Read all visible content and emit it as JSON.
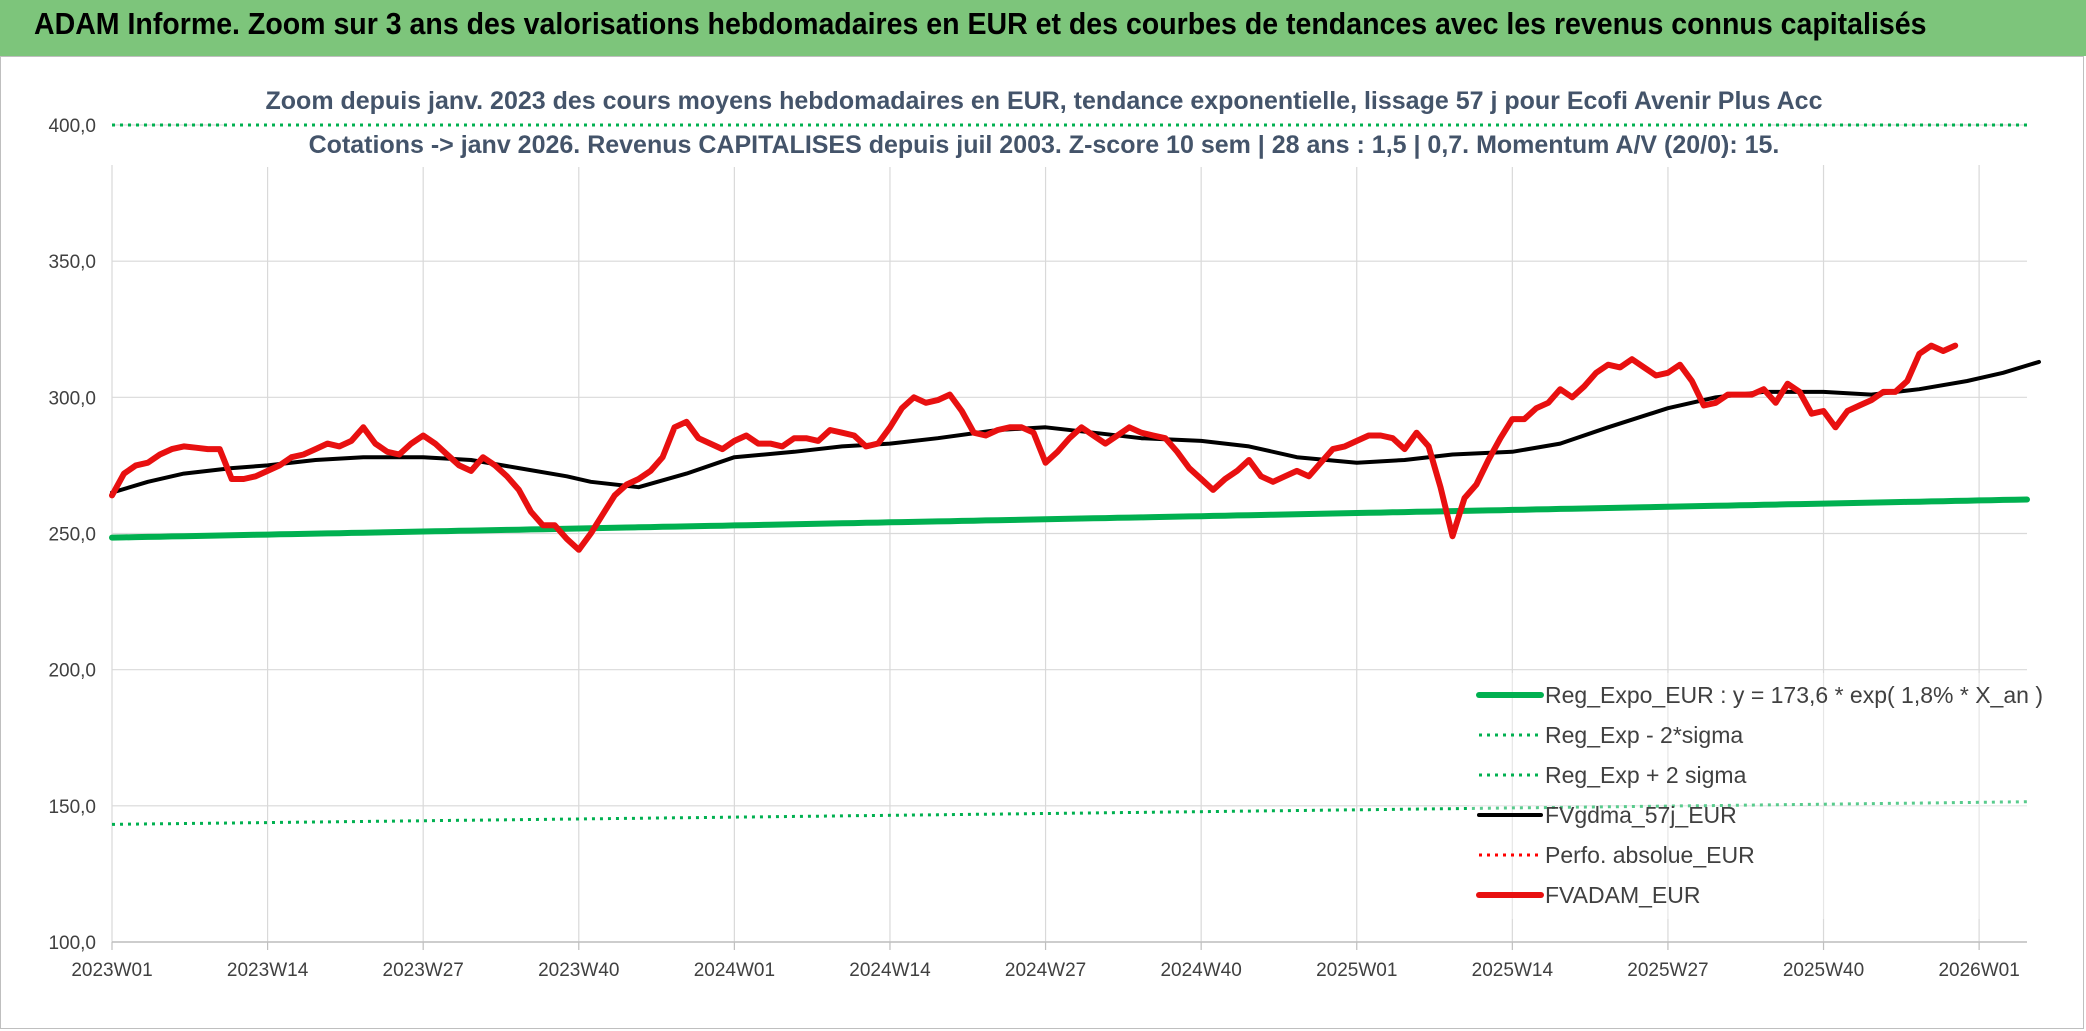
{
  "header": {
    "title": "ADAM Informe. Zoom sur 3 ans des valorisations hebdomadaires en EUR et des courbes de tendances avec les revenus connus capitalisés"
  },
  "chart_data": {
    "type": "line",
    "title_line1": "Zoom depuis janv. 2023 des cours moyens hebdomadaires en EUR, tendance exponentielle, lissage 57 j pour Ecofi Avenir Plus Acc",
    "title_line2": "Cotations -> janv 2026. Revenus CAPITALISES depuis juil 2003. Z-score 10 sem | 28 ans : 1,5 | 0,7. Momentum A/V (20/0): 15.",
    "ylim": [
      100,
      400
    ],
    "yticks": [
      "100,0",
      "150,0",
      "200,0",
      "250,0",
      "300,0",
      "350,0",
      "400,0"
    ],
    "ytick_values": [
      100,
      150,
      200,
      250,
      300,
      350,
      400
    ],
    "xticks": [
      "2023W01",
      "2023W14",
      "2023W27",
      "2023W40",
      "2024W01",
      "2024W14",
      "2024W27",
      "2024W40",
      "2025W01",
      "2025W14",
      "2025W27",
      "2025W40",
      "2026W01"
    ],
    "xtick_index": [
      0,
      13,
      26,
      39,
      52,
      65,
      78,
      91,
      104,
      117,
      130,
      143,
      156
    ],
    "n_weeks": 161,
    "grid": true,
    "legend_position": "bottom-right",
    "colors": {
      "green": "#00b050",
      "black": "#000000",
      "red": "#e81010",
      "red_dotted": "#ff0000"
    },
    "series": [
      {
        "name": "Reg_Expo_EUR : y = 173,6 * exp( 1,8% *  X_an )",
        "style": "solid-thick",
        "color": "#00b050",
        "start": 248.5,
        "end": 262.5
      },
      {
        "name": "Reg_Exp - 2*sigma",
        "style": "dotted",
        "color": "#00b050",
        "start": 143.2,
        "end": 151.5
      },
      {
        "name": "Reg_Exp + 2 sigma",
        "style": "dotted",
        "color": "#00b050",
        "start": 400,
        "end": 400
      },
      {
        "name": "FVgdma_57j_EUR",
        "style": "solid",
        "color": "#000000",
        "points": [
          [
            0,
            265
          ],
          [
            3,
            269
          ],
          [
            6,
            272
          ],
          [
            10,
            274
          ],
          [
            13,
            275
          ],
          [
            17,
            277
          ],
          [
            21,
            278
          ],
          [
            26,
            278
          ],
          [
            30,
            277
          ],
          [
            34,
            274
          ],
          [
            38,
            271
          ],
          [
            40,
            269
          ],
          [
            44,
            267
          ],
          [
            48,
            272
          ],
          [
            52,
            278
          ],
          [
            57,
            280
          ],
          [
            61,
            282
          ],
          [
            65,
            283
          ],
          [
            69,
            285
          ],
          [
            74,
            288
          ],
          [
            78,
            289
          ],
          [
            82,
            287
          ],
          [
            86,
            285
          ],
          [
            91,
            284
          ],
          [
            95,
            282
          ],
          [
            99,
            278
          ],
          [
            104,
            276
          ],
          [
            108,
            277
          ],
          [
            112,
            279
          ],
          [
            117,
            280
          ],
          [
            121,
            283
          ],
          [
            125,
            289
          ],
          [
            130,
            296
          ],
          [
            134,
            300
          ],
          [
            138,
            302
          ],
          [
            143,
            302
          ],
          [
            147,
            301
          ],
          [
            151,
            303
          ],
          [
            155,
            306
          ],
          [
            158,
            309
          ],
          [
            161,
            313
          ]
        ]
      },
      {
        "name": "Perfo. absolue_EUR",
        "style": "dotted",
        "color": "#ff0000",
        "points": []
      },
      {
        "name": "FVADAM_EUR",
        "style": "solid-thick",
        "color": "#e81010",
        "points": [
          [
            0,
            264
          ],
          [
            1,
            272
          ],
          [
            2,
            275
          ],
          [
            3,
            276
          ],
          [
            4,
            279
          ],
          [
            5,
            281
          ],
          [
            6,
            282
          ],
          [
            7,
            281.5
          ],
          [
            8,
            281
          ],
          [
            9,
            281
          ],
          [
            10,
            270
          ],
          [
            11,
            270
          ],
          [
            12,
            271
          ],
          [
            13,
            273
          ],
          [
            14,
            275
          ],
          [
            15,
            278
          ],
          [
            16,
            279
          ],
          [
            17,
            281
          ],
          [
            18,
            283
          ],
          [
            19,
            282
          ],
          [
            20,
            284
          ],
          [
            21,
            289
          ],
          [
            22,
            283
          ],
          [
            23,
            280
          ],
          [
            24,
            279
          ],
          [
            25,
            283
          ],
          [
            26,
            286
          ],
          [
            27,
            283
          ],
          [
            28,
            279
          ],
          [
            29,
            275
          ],
          [
            30,
            273
          ],
          [
            31,
            278
          ],
          [
            32,
            275
          ],
          [
            33,
            271
          ],
          [
            34,
            266
          ],
          [
            35,
            258
          ],
          [
            36,
            253
          ],
          [
            37,
            253
          ],
          [
            38,
            248
          ],
          [
            39,
            244
          ],
          [
            40,
            250
          ],
          [
            41,
            257
          ],
          [
            42,
            264
          ],
          [
            43,
            268
          ],
          [
            44,
            270
          ],
          [
            45,
            273
          ],
          [
            46,
            278
          ],
          [
            47,
            289
          ],
          [
            48,
            291
          ],
          [
            49,
            285
          ],
          [
            50,
            283
          ],
          [
            51,
            281
          ],
          [
            52,
            284
          ],
          [
            53,
            286
          ],
          [
            54,
            283
          ],
          [
            55,
            283
          ],
          [
            56,
            282
          ],
          [
            57,
            285
          ],
          [
            58,
            285
          ],
          [
            59,
            284
          ],
          [
            60,
            288
          ],
          [
            61,
            287
          ],
          [
            62,
            286
          ],
          [
            63,
            282
          ],
          [
            64,
            283
          ],
          [
            65,
            289
          ],
          [
            66,
            296
          ],
          [
            67,
            300
          ],
          [
            68,
            298
          ],
          [
            69,
            299
          ],
          [
            70,
            301
          ],
          [
            71,
            295
          ],
          [
            72,
            287
          ],
          [
            73,
            286
          ],
          [
            74,
            288
          ],
          [
            75,
            289
          ],
          [
            76,
            289
          ],
          [
            77,
            287
          ],
          [
            78,
            276
          ],
          [
            79,
            280
          ],
          [
            80,
            285
          ],
          [
            81,
            289
          ],
          [
            82,
            286
          ],
          [
            83,
            283
          ],
          [
            84,
            286
          ],
          [
            85,
            289
          ],
          [
            86,
            287
          ],
          [
            87,
            286
          ],
          [
            88,
            285
          ],
          [
            89,
            280
          ],
          [
            90,
            274
          ],
          [
            91,
            270
          ],
          [
            92,
            266
          ],
          [
            93,
            270
          ],
          [
            94,
            273
          ],
          [
            95,
            277
          ],
          [
            96,
            271
          ],
          [
            97,
            269
          ],
          [
            98,
            271
          ],
          [
            99,
            273
          ],
          [
            100,
            271
          ],
          [
            101,
            276
          ],
          [
            102,
            281
          ],
          [
            103,
            282
          ],
          [
            104,
            284
          ],
          [
            105,
            286
          ],
          [
            106,
            286
          ],
          [
            107,
            285
          ],
          [
            108,
            281
          ],
          [
            109,
            287
          ],
          [
            110,
            282
          ],
          [
            111,
            267
          ],
          [
            112,
            249
          ],
          [
            113,
            263
          ],
          [
            114,
            268
          ],
          [
            115,
            277
          ],
          [
            116,
            285
          ],
          [
            117,
            292
          ],
          [
            118,
            292
          ],
          [
            119,
            296
          ],
          [
            120,
            298
          ],
          [
            121,
            303
          ],
          [
            122,
            300
          ],
          [
            123,
            304
          ],
          [
            124,
            309
          ],
          [
            125,
            312
          ],
          [
            126,
            311
          ],
          [
            127,
            314
          ],
          [
            128,
            311
          ],
          [
            129,
            308
          ],
          [
            130,
            309
          ],
          [
            131,
            312
          ],
          [
            132,
            306
          ],
          [
            133,
            297
          ],
          [
            134,
            298
          ],
          [
            135,
            301
          ],
          [
            136,
            301
          ],
          [
            137,
            301
          ],
          [
            138,
            303
          ],
          [
            139,
            298
          ],
          [
            140,
            305
          ],
          [
            141,
            302
          ],
          [
            142,
            294
          ],
          [
            143,
            295
          ],
          [
            144,
            289
          ],
          [
            145,
            295
          ],
          [
            146,
            297
          ],
          [
            147,
            299
          ],
          [
            148,
            302
          ],
          [
            149,
            302
          ],
          [
            150,
            306
          ],
          [
            151,
            316
          ],
          [
            152,
            319
          ],
          [
            153,
            317
          ],
          [
            154,
            319
          ]
        ]
      }
    ]
  }
}
